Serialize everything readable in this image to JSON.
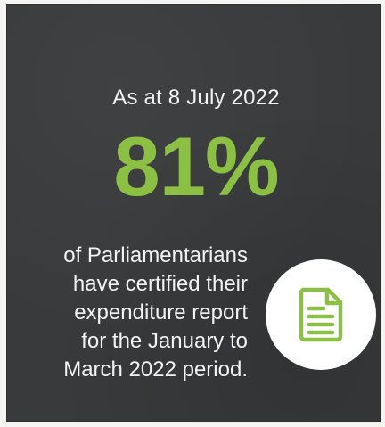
{
  "card": {
    "date_line": "As at 8 July 2022",
    "statistic": "81%",
    "description_lines": [
      "of Parliamentarians",
      "have certified their",
      "expenditure report",
      "for the January to",
      "March 2022 period."
    ],
    "icon": "document-icon",
    "colors": {
      "background": "#383a3b",
      "accent": "#8cc044",
      "text": "#f3f3f3",
      "icon_circle": "#ffffff"
    }
  }
}
